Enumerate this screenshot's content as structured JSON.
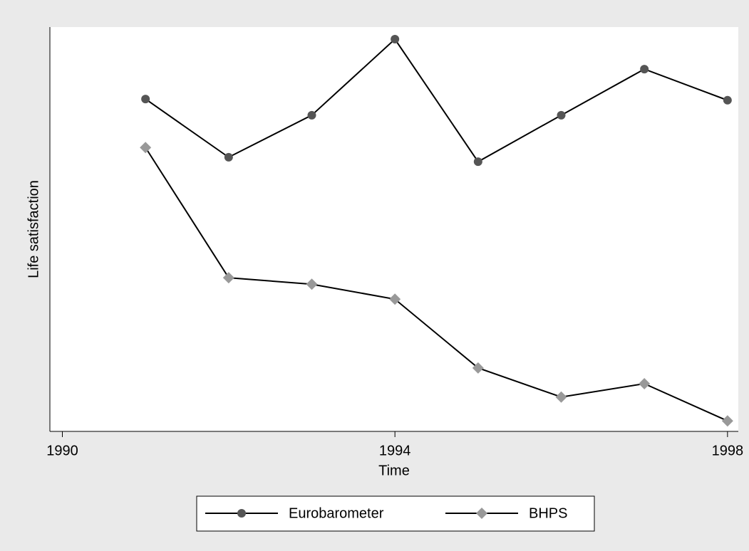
{
  "chart_data": {
    "type": "line",
    "x_label": "Time",
    "y_label": "Life satisfaction",
    "x": [
      1991,
      1992,
      1993,
      1994,
      1995,
      1996,
      1997,
      1998
    ],
    "series": [
      {
        "name": "Eurobarometer",
        "color": "#555555",
        "marker": "circle",
        "values": [
          82.2,
          67.8,
          78.2,
          97.0,
          66.7,
          78.2,
          89.6,
          81.9
        ]
      },
      {
        "name": "BHPS",
        "color": "#999999",
        "marker": "diamond",
        "values": [
          70.2,
          38.0,
          36.4,
          32.7,
          15.7,
          8.5,
          11.8,
          2.6
        ]
      }
    ],
    "xlim": [
      1989.85,
      1998.13
    ],
    "xticks": [
      1990,
      1994,
      1998
    ],
    "ylim": [
      0,
      100
    ],
    "grid": false,
    "legend": "bottom"
  }
}
